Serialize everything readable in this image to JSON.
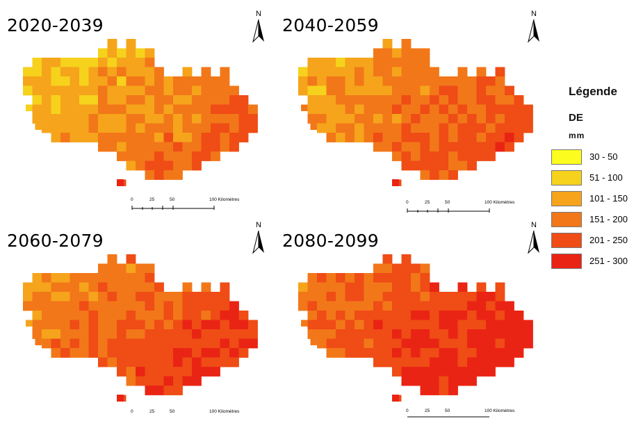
{
  "panels": [
    {
      "title": "2020-2039",
      "scale_labels": [
        "0",
        "25",
        "50",
        "100 Kilomètres"
      ],
      "level": 0
    },
    {
      "title": "2040-2059",
      "scale_labels": [
        "0",
        "25",
        "50",
        "100 Kilomètres"
      ],
      "level": 1
    },
    {
      "title": "2060-2079",
      "scale_labels": [
        "0",
        "25",
        "50",
        "100 Kilomètres"
      ],
      "level": 2
    },
    {
      "title": "2080-2099",
      "scale_labels": [
        "0",
        "25",
        "50",
        "100 Kilomètres"
      ],
      "level": 3
    }
  ],
  "north_label": "N",
  "legend": {
    "title": "Légende",
    "variable": "DE",
    "unit": "mm",
    "items": [
      {
        "label": "30 - 50",
        "color": "#fcfc1e"
      },
      {
        "label": "51 - 100",
        "color": "#f6d21c"
      },
      {
        "label": "101 - 150",
        "color": "#f5a41b"
      },
      {
        "label": "151 - 200",
        "color": "#f27719"
      },
      {
        "label": "201 - 250",
        "color": "#ef4c16"
      },
      {
        "label": "251 - 300",
        "color": "#ea2414"
      }
    ]
  }
}
